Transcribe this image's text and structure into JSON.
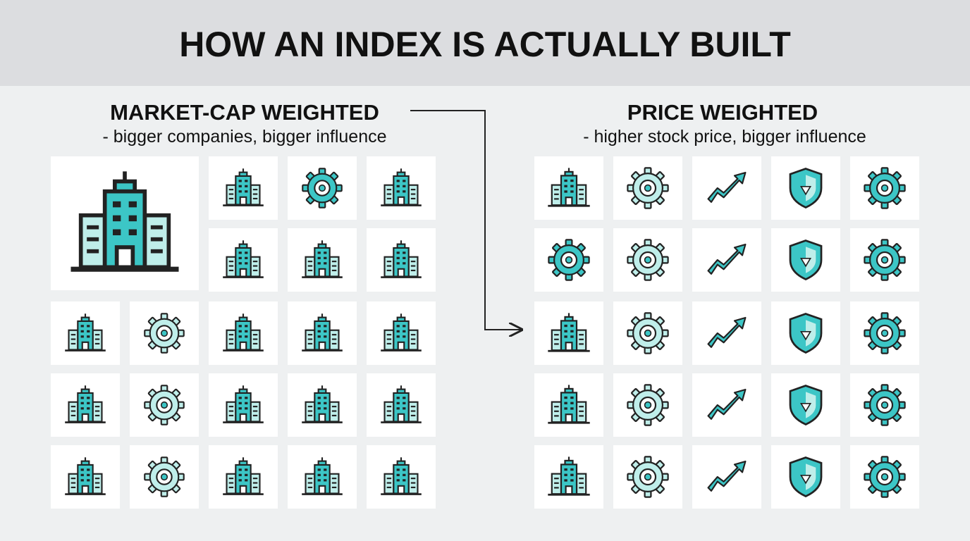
{
  "header": {
    "title": "HOW AN INDEX IS ACTUALLY BUILT"
  },
  "left": {
    "heading": "MARKET-CAP WEIGHTED",
    "subheading": "- bigger companies, bigger influence"
  },
  "right": {
    "heading": "PRICE WEIGHTED",
    "subheading": "- higher stock price, bigger influence"
  }
}
